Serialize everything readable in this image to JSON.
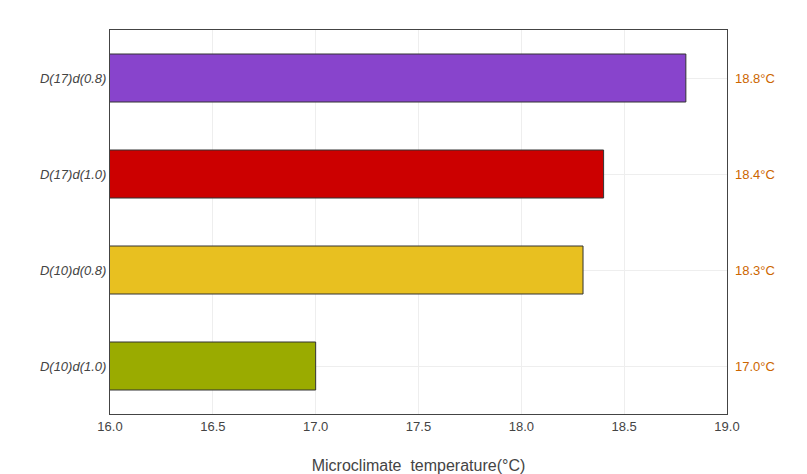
{
  "chart_data": {
    "type": "bar",
    "orientation": "horizontal",
    "categories": [
      "D(10)d(1.0)",
      "D(10)d(0.8)",
      "D(17)d(1.0)",
      "D(17)d(0.8)"
    ],
    "values": [
      17.0,
      18.3,
      18.4,
      18.8
    ],
    "value_labels": [
      "17.0°C",
      "18.3°C",
      "18.4°C",
      "18.8°C"
    ],
    "data_labels": true,
    "colors": [
      "#9AAB00",
      "#E8C020",
      "#CC0000",
      "#8844CC"
    ],
    "xlabel": "Microclimate  temperature(°C)",
    "xlim": [
      16.0,
      19.0
    ],
    "xticks": [
      {
        "value": 16.0,
        "label": "16.0"
      },
      {
        "value": 16.5,
        "label": "16.5"
      },
      {
        "value": 17.0,
        "label": "17.0"
      },
      {
        "value": 17.5,
        "label": "17.5"
      },
      {
        "value": 18.0,
        "label": "18.0"
      },
      {
        "value": 18.5,
        "label": "18.5"
      },
      {
        "value": 19.0,
        "label": "19.0"
      }
    ],
    "grid": true
  }
}
